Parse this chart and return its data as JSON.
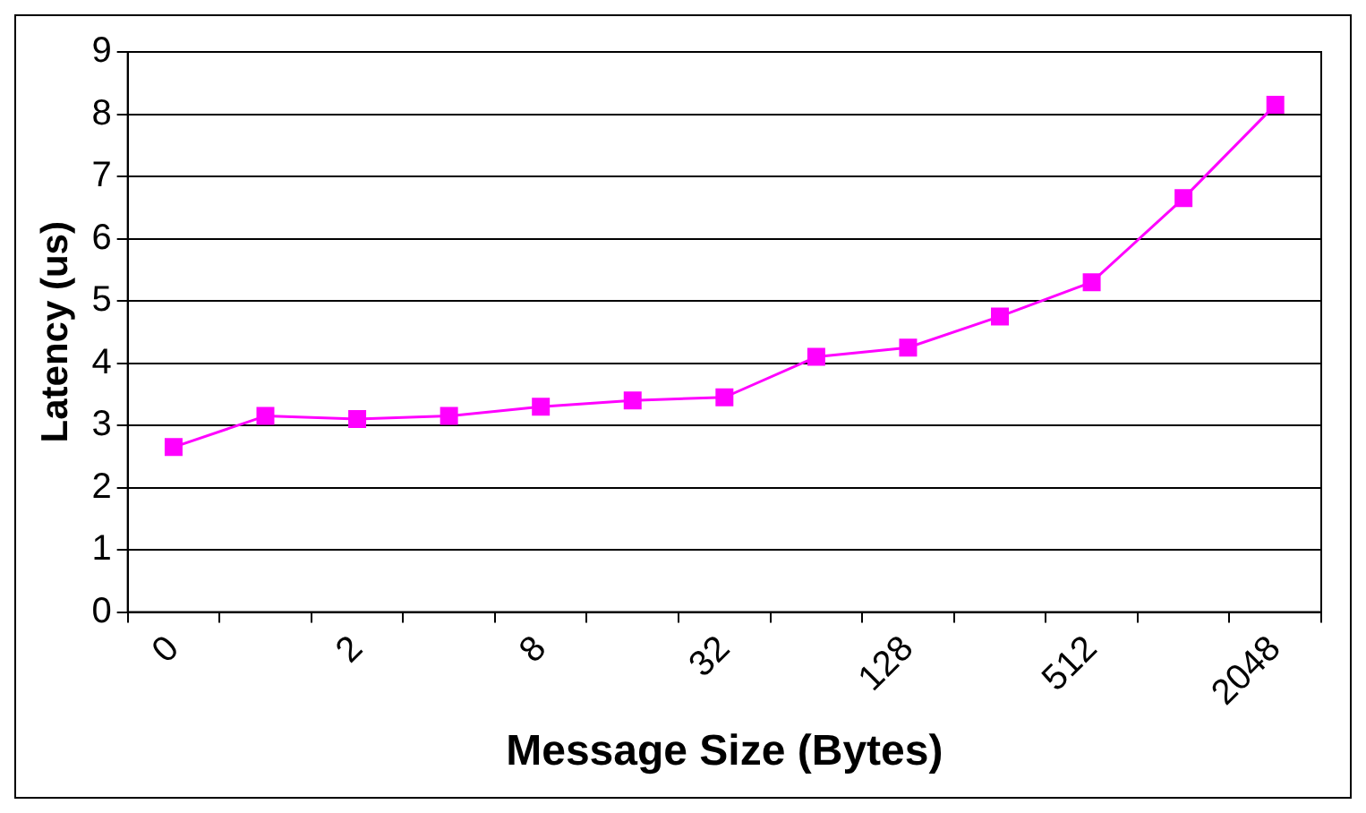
{
  "chart_data": {
    "type": "line",
    "xlabel": "Message Size (Bytes)",
    "ylabel": "Latency (us)",
    "categories": [
      "0",
      null,
      "2",
      null,
      "8",
      null,
      "32",
      null,
      "128",
      null,
      "512",
      null,
      "2048"
    ],
    "series": [
      {
        "color": "#ff00ff",
        "values": [
          2.65,
          3.15,
          3.1,
          3.15,
          3.3,
          3.4,
          3.45,
          4.1,
          4.25,
          4.75,
          5.3,
          6.65,
          8.15
        ]
      }
    ],
    "ylim": [
      0,
      9
    ],
    "yticks": [
      0,
      1,
      2,
      3,
      4,
      5,
      6,
      7,
      8,
      9
    ],
    "grid": "y",
    "legend": false,
    "marker": "square",
    "line_style": "solid"
  }
}
